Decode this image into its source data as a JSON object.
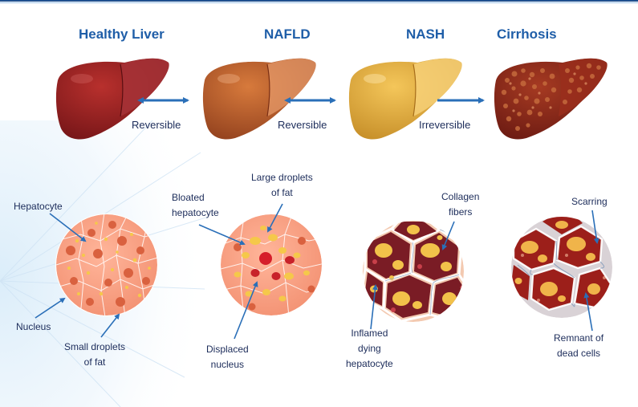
{
  "colors": {
    "title_blue": "#1f5ea8",
    "arrow_blue": "#2a6fb8",
    "label_navy": "#1c2c5a",
    "healthy_liver": "#8e1b1c",
    "nafld_liver": "#b2552a",
    "nash_liver": "#e1a83e",
    "cirrhosis_liver": "#8a2418"
  },
  "stages": [
    {
      "title": "Healthy Liver"
    },
    {
      "title": "NAFLD"
    },
    {
      "title": "NASH"
    },
    {
      "title": "Cirrhosis"
    }
  ],
  "arrows": [
    {
      "label": "Reversible",
      "direction": "bidirectional"
    },
    {
      "label": "Reversible",
      "direction": "bidirectional"
    },
    {
      "label": "Irreversible",
      "direction": "forward"
    }
  ],
  "callouts": {
    "healthy": {
      "hepatocyte": "Hepatocyte",
      "nucleus": "Nucleus",
      "small_droplets_1": "Small droplets",
      "small_droplets_2": "of fat"
    },
    "nafld": {
      "bloated_1": "Bloated",
      "bloated_2": "hepatocyte",
      "large_droplets_1": "Large droplets",
      "large_droplets_2": "of fat",
      "displaced_1": "Displaced",
      "displaced_2": "nucleus"
    },
    "nash": {
      "collagen_1": "Collagen",
      "collagen_2": "fibers",
      "inflamed_1": "Inflamed",
      "inflamed_2": "dying",
      "inflamed_3": "hepatocyte"
    },
    "cirrhosis": {
      "scarring": "Scarring",
      "remnant_1": "Remnant of",
      "remnant_2": "dead cells"
    }
  }
}
